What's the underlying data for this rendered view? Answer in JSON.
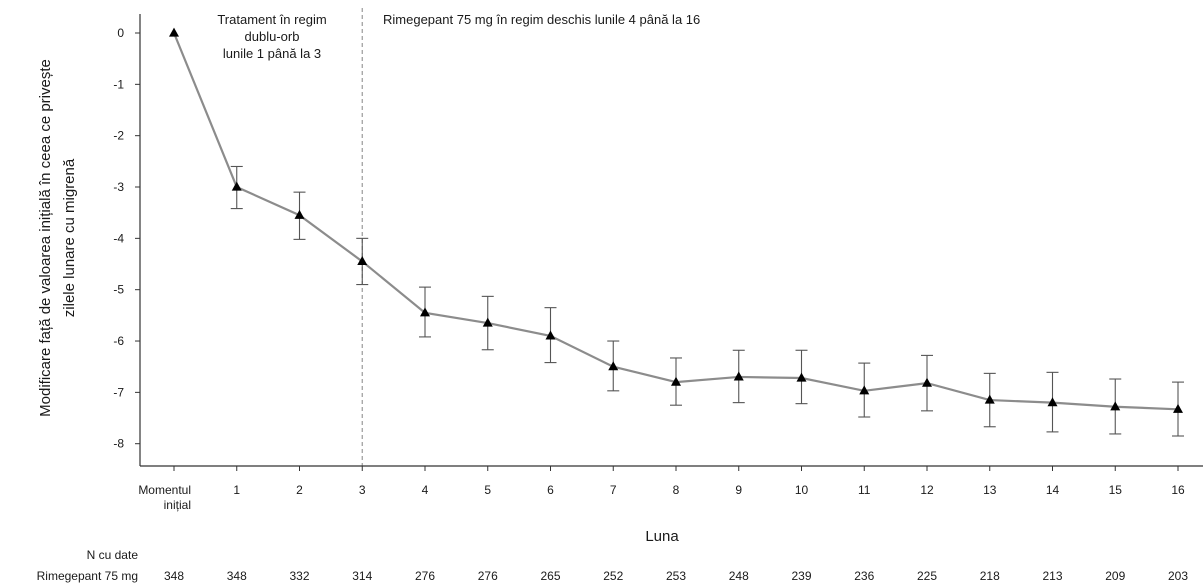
{
  "chart_data": {
    "type": "line",
    "xlabel": "Luna",
    "ylabel_lines": [
      "Modificare față de valoarea inițială în ceea ce privește",
      "zilele lunare cu migrenă"
    ],
    "ylim": [
      -8,
      0
    ],
    "yticks": [
      0,
      -1,
      -2,
      -3,
      -4,
      -5,
      -6,
      -7,
      -8
    ],
    "categories": [
      [
        "Momentul",
        "inițial"
      ],
      [
        "1"
      ],
      [
        "2"
      ],
      [
        "3"
      ],
      [
        "4"
      ],
      [
        "5"
      ],
      [
        "6"
      ],
      [
        "7"
      ],
      [
        "8"
      ],
      [
        "9"
      ],
      [
        "10"
      ],
      [
        "11"
      ],
      [
        "12"
      ],
      [
        "13"
      ],
      [
        "14"
      ],
      [
        "15"
      ],
      [
        "16"
      ]
    ],
    "series": [
      {
        "values": [
          0,
          -3.0,
          -3.55,
          -4.45,
          -5.45,
          -5.65,
          -5.9,
          -6.5,
          -6.8,
          -6.7,
          -6.72,
          -6.97,
          -6.82,
          -7.15,
          -7.2,
          -7.28,
          -7.33
        ],
        "upper": [
          null,
          -2.6,
          -3.1,
          -4.0,
          -4.95,
          -5.13,
          -5.35,
          -6.0,
          -6.33,
          -6.18,
          -6.18,
          -6.43,
          -6.28,
          -6.63,
          -6.61,
          -6.74,
          -6.8
        ],
        "lower": [
          null,
          -3.42,
          -4.02,
          -4.9,
          -5.92,
          -6.17,
          -6.42,
          -6.97,
          -7.25,
          -7.2,
          -7.22,
          -7.48,
          -7.36,
          -7.67,
          -7.77,
          -7.81,
          -7.85
        ]
      }
    ],
    "annotations": [
      {
        "lines": [
          "Tratament în regim",
          "dublu-orb",
          "lunile 1 până la 3"
        ]
      },
      {
        "lines": [
          "Rimegepant 75 mg în regim deschis lunile 4 până la 16"
        ]
      }
    ],
    "divider_after_category": "3",
    "n_table": {
      "header": "N cu date",
      "row_label": "Rimegepant 75 mg",
      "values": [
        "348",
        "348",
        "332",
        "314",
        "276",
        "276",
        "265",
        "252",
        "253",
        "248",
        "239",
        "236",
        "225",
        "218",
        "213",
        "209",
        "203"
      ]
    },
    "colors": {
      "line": "#8c8c8c",
      "marker": "#000000",
      "errorbar": "#555555",
      "axis": "#333333",
      "divider": "#9a9a9a"
    }
  }
}
